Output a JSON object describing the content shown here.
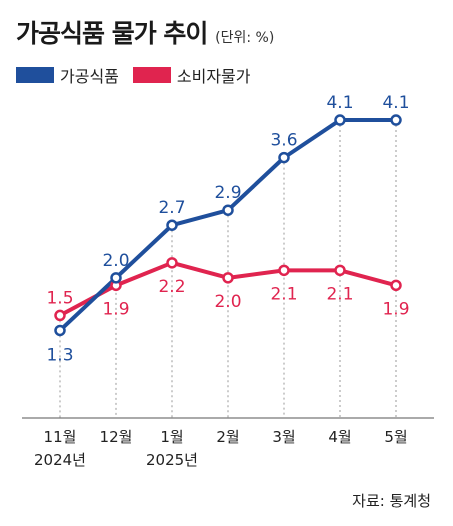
{
  "header": {
    "title": "가공식품 물가 추이",
    "unit": "(단위: %)"
  },
  "legend": [
    {
      "label": "가공식품",
      "color": "#1f4f9c"
    },
    {
      "label": "소비자물가",
      "color": "#e0244f"
    }
  ],
  "source": "자료: 통계청",
  "chart_data": {
    "type": "line",
    "x": [
      "11월",
      "12월",
      "1월",
      "2월",
      "3월",
      "4월",
      "5월"
    ],
    "x_sublabels": [
      "2024년",
      "",
      "2025년",
      "",
      "",
      "",
      ""
    ],
    "series": [
      {
        "name": "가공식품",
        "color": "#1f4f9c",
        "values": [
          1.3,
          2.0,
          2.7,
          2.9,
          3.6,
          4.1,
          4.1
        ],
        "labels": [
          "1.3",
          "2.0",
          "2.7",
          "2.9",
          "3.6",
          "4.1",
          "4.1"
        ]
      },
      {
        "name": "소비자물가",
        "color": "#e0244f",
        "values": [
          1.5,
          1.9,
          2.2,
          2.0,
          2.1,
          2.1,
          1.9
        ],
        "labels": [
          "1.5",
          "1.9",
          "2.2",
          "2.0",
          "2.1",
          "2.1",
          "1.9"
        ]
      }
    ],
    "ylim": [
      1.0,
      4.3
    ],
    "grid": "vertical dotted",
    "legend_position": "top-left"
  }
}
